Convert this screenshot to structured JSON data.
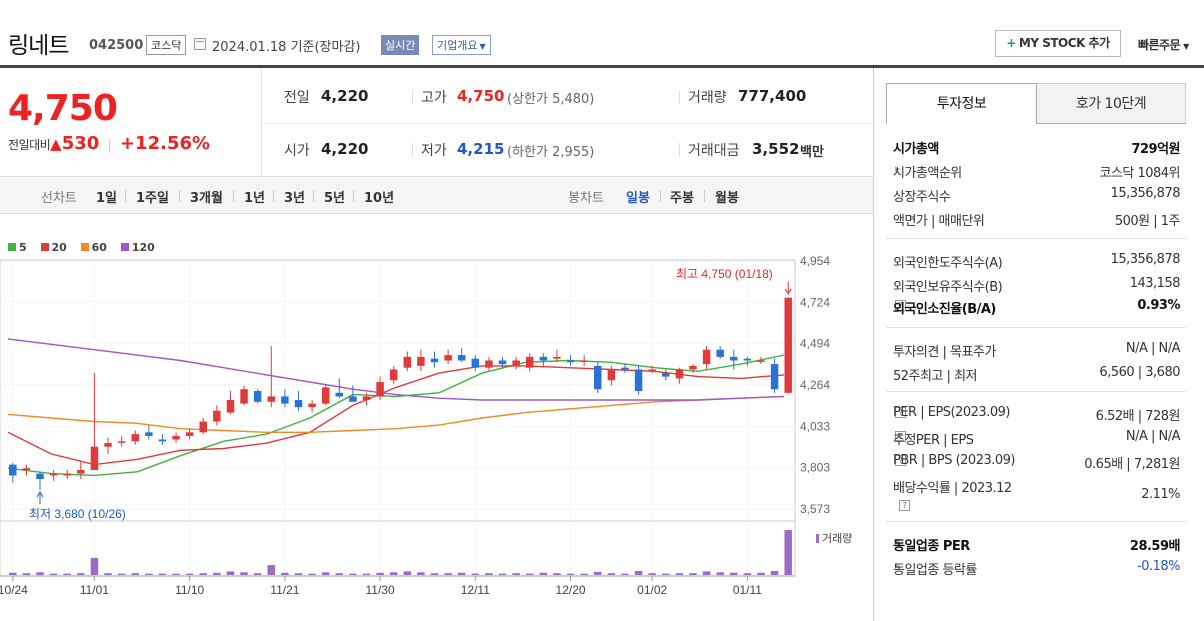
{
  "header": {
    "stock_name": "링네트",
    "stock_code": "042500",
    "market": "코스닥",
    "date_text": "2024.01.18  기준(장마감)",
    "realtime_label": "실시간",
    "company_info_label": "기업개요",
    "my_stock_label": "MY STOCK 추가",
    "quick_order_label": "빠른주문"
  },
  "summary": {
    "current_price": "4,750",
    "change_label": "전일대비",
    "change_value": "530",
    "change_pct": "+12.56%",
    "prev_close_label": "전일",
    "prev_close": "4,220",
    "high_label": "고가",
    "high": "4,750",
    "upper_limit": "(상한가 5,480)",
    "volume_label": "거래량",
    "volume": "777,400",
    "open_label": "시가",
    "open": "4,220",
    "low_label": "저가",
    "low": "4,215",
    "lower_limit": "(하한가 2,955)",
    "amount_label": "거래대금",
    "amount": "3,552",
    "amount_unit": "백만"
  },
  "period_bar": {
    "label_line": "선차트",
    "line_periods": [
      "1일",
      "1주일",
      "3개월",
      "1년",
      "3년",
      "5년",
      "10년"
    ],
    "label_candle": "봉차트",
    "candle_periods": [
      "일봉",
      "주봉",
      "월봉"
    ],
    "selected_candle": "일봉"
  },
  "legend": [
    {
      "label": "5",
      "color": "#3fb23f"
    },
    {
      "label": "20",
      "color": "#e03a3a"
    },
    {
      "label": "60",
      "color": "#f08a24"
    },
    {
      "label": "120",
      "color": "#9b59c9"
    }
  ],
  "colors": {
    "up": "#e03a3a",
    "down": "#2a72d6",
    "volume": "#9b6cc4",
    "accent": "#e22",
    "blue": "#2456c4"
  },
  "chart_data": {
    "type": "candlestick",
    "ylim": [
      3500,
      5000
    ],
    "y_ticks": [
      4954,
      4724,
      4494,
      4264,
      4033,
      3803,
      3573
    ],
    "y_tick_labels": [
      "4,954",
      "4,724",
      "4,494",
      "4,264",
      "4,033",
      "3,803",
      "3,573"
    ],
    "x_tick_labels": [
      "10/24",
      "11/01",
      "11/10",
      "11/21",
      "11/30",
      "12/11",
      "12/20",
      "01/02",
      "01/11"
    ],
    "x_tick_index": [
      0,
      6,
      13,
      20,
      27,
      34,
      41,
      47,
      54
    ],
    "high_annotation": "최고 4,750 (01/18)",
    "low_annotation": "최저 3,680 (10/26)",
    "volume_label": "거래량",
    "ohlc": [
      [
        3820,
        3830,
        3720,
        3760
      ],
      [
        3790,
        3820,
        3760,
        3800
      ],
      [
        3770,
        3780,
        3680,
        3740
      ],
      [
        3760,
        3790,
        3730,
        3770
      ],
      [
        3760,
        3790,
        3740,
        3770
      ],
      [
        3770,
        3840,
        3740,
        3790
      ],
      [
        3790,
        4330,
        3790,
        3920
      ],
      [
        3920,
        3970,
        3880,
        3940
      ],
      [
        3950,
        3980,
        3920,
        3950
      ],
      [
        3950,
        4010,
        3930,
        3990
      ],
      [
        4000,
        4040,
        3960,
        3980
      ],
      [
        3960,
        3990,
        3930,
        3950
      ],
      [
        3960,
        4000,
        3940,
        3980
      ],
      [
        3980,
        4020,
        3960,
        4000
      ],
      [
        4000,
        4080,
        3990,
        4060
      ],
      [
        4060,
        4150,
        4040,
        4120
      ],
      [
        4110,
        4230,
        4100,
        4180
      ],
      [
        4160,
        4260,
        4150,
        4240
      ],
      [
        4230,
        4240,
        4160,
        4170
      ],
      [
        4170,
        4480,
        4140,
        4200
      ],
      [
        4200,
        4240,
        4140,
        4160
      ],
      [
        4180,
        4230,
        4120,
        4140
      ],
      [
        4140,
        4180,
        4110,
        4160
      ],
      [
        4160,
        4270,
        4150,
        4250
      ],
      [
        4220,
        4300,
        4190,
        4200
      ],
      [
        4200,
        4260,
        4170,
        4170
      ],
      [
        4180,
        4220,
        4150,
        4200
      ],
      [
        4200,
        4310,
        4180,
        4280
      ],
      [
        4290,
        4370,
        4270,
        4350
      ],
      [
        4360,
        4450,
        4340,
        4420
      ],
      [
        4370,
        4460,
        4340,
        4420
      ],
      [
        4410,
        4450,
        4360,
        4390
      ],
      [
        4400,
        4460,
        4380,
        4430
      ],
      [
        4430,
        4470,
        4390,
        4400
      ],
      [
        4410,
        4430,
        4340,
        4360
      ],
      [
        4360,
        4420,
        4340,
        4400
      ],
      [
        4400,
        4420,
        4360,
        4380
      ],
      [
        4370,
        4420,
        4350,
        4400
      ],
      [
        4360,
        4440,
        4340,
        4420
      ],
      [
        4420,
        4440,
        4370,
        4400
      ],
      [
        4410,
        4460,
        4390,
        4420
      ],
      [
        4400,
        4430,
        4370,
        4390
      ],
      [
        4400,
        4430,
        4370,
        4400
      ],
      [
        4370,
        4390,
        4220,
        4240
      ],
      [
        4290,
        4370,
        4260,
        4350
      ],
      [
        4360,
        4380,
        4330,
        4350
      ],
      [
        4350,
        4370,
        4210,
        4230
      ],
      [
        4340,
        4370,
        4330,
        4350
      ],
      [
        4330,
        4350,
        4290,
        4310
      ],
      [
        4300,
        4360,
        4270,
        4350
      ],
      [
        4350,
        4380,
        4330,
        4370
      ],
      [
        4380,
        4480,
        4350,
        4460
      ],
      [
        4460,
        4480,
        4410,
        4420
      ],
      [
        4420,
        4460,
        4350,
        4400
      ],
      [
        4410,
        4420,
        4370,
        4400
      ],
      [
        4400,
        4420,
        4380,
        4400
      ],
      [
        4380,
        4410,
        4220,
        4240
      ],
      [
        4220,
        4750,
        4215,
        4750
      ]
    ],
    "volume": [
      5,
      4,
      6,
      3,
      3,
      4,
      38,
      4,
      3,
      4,
      3,
      3,
      3,
      3,
      4,
      5,
      8,
      6,
      4,
      22,
      5,
      4,
      3,
      6,
      4,
      3,
      3,
      5,
      6,
      8,
      6,
      4,
      4,
      5,
      3,
      4,
      3,
      4,
      3,
      5,
      4,
      3,
      3,
      7,
      4,
      3,
      9,
      4,
      3,
      4,
      4,
      8,
      6,
      5,
      4,
      5,
      9,
      100
    ],
    "ma_anchor_values": {
      "ma5": [
        3800,
        3770,
        3760,
        3780,
        3870,
        3950,
        3990,
        4080,
        4210,
        4200,
        4220,
        4330,
        4390,
        4400,
        4390,
        4360,
        4340,
        4380,
        4430
      ],
      "ma20": [
        4000,
        3880,
        3820,
        3850,
        3900,
        3910,
        3940,
        4000,
        4150,
        4250,
        4330,
        4370,
        4370,
        4360,
        4350,
        4340,
        4310,
        4300,
        4320
      ],
      "ma60": [
        4100,
        4080,
        4060,
        4050,
        4020,
        4010,
        4000,
        4000,
        4010,
        4020,
        4040,
        4080,
        4110,
        4130,
        4150,
        4170,
        4180,
        4190,
        4200
      ],
      "ma120": [
        4520,
        4490,
        4460,
        4430,
        4400,
        4360,
        4320,
        4280,
        4240,
        4210,
        4190,
        4180,
        4180,
        4180,
        4180,
        4180,
        4180,
        4190,
        4200
      ]
    }
  },
  "right_panel": {
    "tabs": [
      "투자정보",
      "호가 10단계"
    ],
    "rows": [
      {
        "k": "시가총액",
        "v": "729억원",
        "bold": true
      },
      {
        "k": "시가총액순위",
        "v": "코스닥 1084위",
        "tri": true
      },
      {
        "k": "상장주식수",
        "v": "15,356,878"
      },
      {
        "k": "액면가 | 매매단위",
        "v": "500원 | 1주"
      },
      {
        "k": "외국인한도주식수(A)",
        "v": "15,356,878"
      },
      {
        "k": "외국인보유주식수(B)",
        "v": "143,158"
      },
      {
        "k": "외국인소진율(B/A)",
        "v": "0.93%",
        "bold": true,
        "q": true
      },
      {
        "k": "투자의견 | 목표주가",
        "v": "N/A | N/A"
      },
      {
        "k": "52주최고 | 최저",
        "v": "6,560 | 3,680"
      },
      {
        "k": "PER | EPS(2023.09)",
        "v": "6.52배 | 728원",
        "q": true
      },
      {
        "k": "추정PER | EPS",
        "v": "N/A | N/A",
        "q": true
      },
      {
        "k": "PBR | BPS (2023.09)",
        "v": "0.65배 | 7,281원",
        "q": true
      },
      {
        "k": "배당수익률 | 2023.12",
        "v": "2.11%"
      },
      {
        "k": "동일업종 PER",
        "v": "28.59배",
        "bold": true,
        "tri": true
      },
      {
        "k": "동일업종 등락률",
        "v": "-0.18%",
        "blue": true,
        "tri": true
      }
    ]
  }
}
